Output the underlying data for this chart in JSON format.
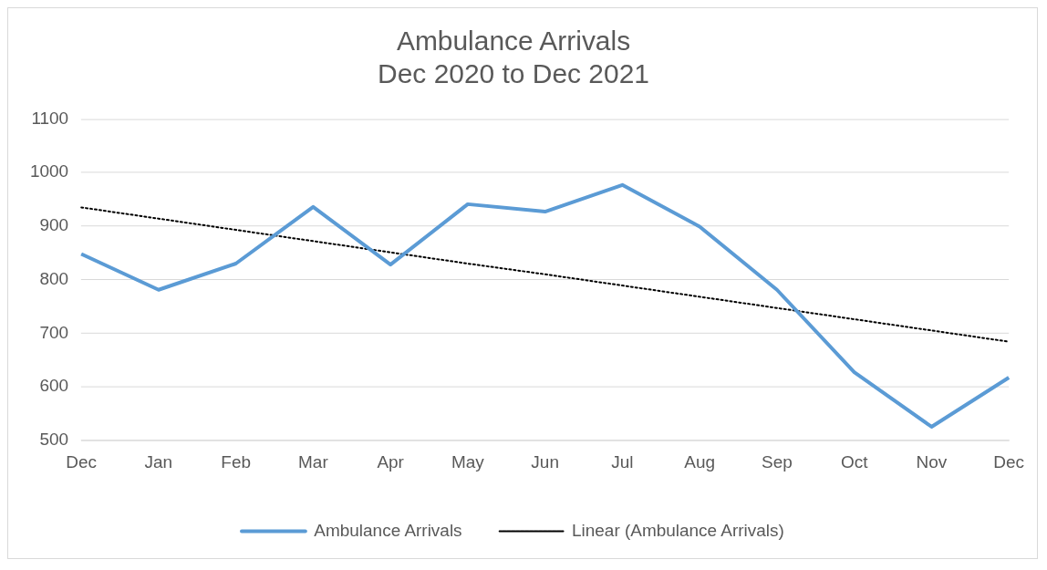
{
  "chart_data": {
    "type": "line",
    "title": [
      "Ambulance Arrivals",
      "Dec 2020 to Dec 2021"
    ],
    "categories": [
      "Dec",
      "Jan",
      "Feb",
      "Mar",
      "Apr",
      "May",
      "Jun",
      "Jul",
      "Aug",
      "Sep",
      "Oct",
      "Nov",
      "Dec"
    ],
    "series": [
      {
        "name": "Ambulance Arrivals",
        "color": "#5b9bd5",
        "line_style": "solid",
        "values": [
          848,
          781,
          830,
          936,
          828,
          941,
          927,
          977,
          899,
          781,
          627,
          525,
          617
        ]
      },
      {
        "name": "Linear (Ambulance Arrivals)",
        "color": "#000000",
        "line_style": "dotted",
        "values": [
          935,
          914,
          893,
          872,
          851,
          830,
          810,
          789,
          768,
          747,
          726,
          705,
          684
        ]
      }
    ],
    "ylim": [
      500,
      1100
    ],
    "yticks": [
      500,
      600,
      700,
      800,
      900,
      1000,
      1100
    ],
    "grid": "y",
    "legend": "bottom",
    "marker": "none"
  }
}
